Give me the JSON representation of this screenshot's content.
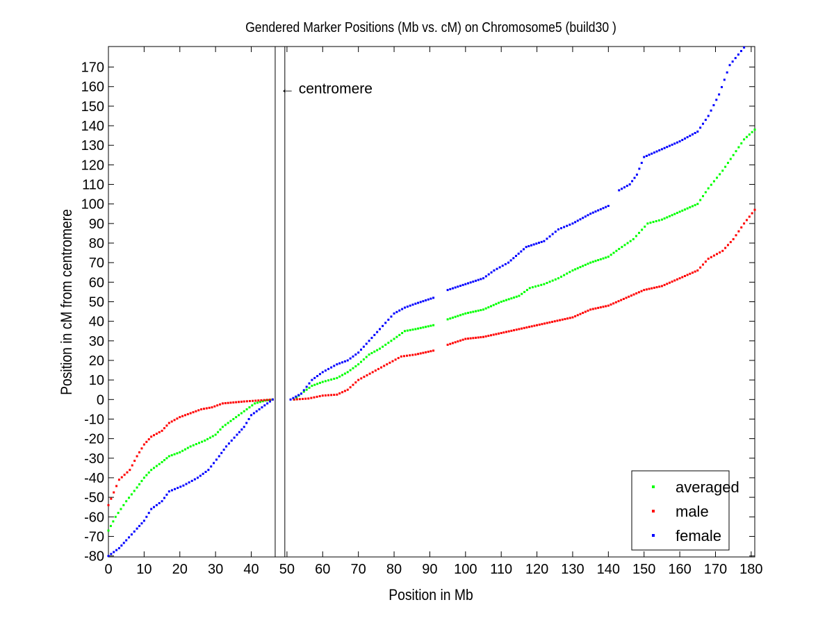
{
  "chart_data": {
    "type": "scatter",
    "title": "Gendered Marker Positions (Mb vs. cM) on Chromosome5 (build30 )",
    "xlabel": "Position in Mb",
    "ylabel": "Position in cM from centromere",
    "xlim": [
      0,
      181
    ],
    "ylim": [
      -80.5,
      180.5
    ],
    "xticks": [
      0,
      10,
      20,
      30,
      40,
      50,
      60,
      70,
      80,
      90,
      100,
      110,
      120,
      130,
      140,
      150,
      160,
      170,
      180
    ],
    "yticks": [
      -80,
      -70,
      -60,
      -50,
      -40,
      -30,
      -20,
      -10,
      0,
      10,
      20,
      30,
      40,
      50,
      60,
      70,
      80,
      90,
      100,
      110,
      120,
      130,
      140,
      150,
      160,
      170
    ],
    "grid": false,
    "legend_position": "bottom-right",
    "centromere": {
      "lines": [
        46.7,
        49.4
      ],
      "label": "← centromere",
      "label_at": [
        50,
        159
      ]
    },
    "series": [
      {
        "name": "averaged",
        "color": "#00ff00",
        "points": [
          [
            0,
            -67
          ],
          [
            2,
            -60
          ],
          [
            5,
            -52
          ],
          [
            8,
            -45
          ],
          [
            10,
            -40
          ],
          [
            12,
            -36
          ],
          [
            15,
            -32
          ],
          [
            17,
            -29
          ],
          [
            20,
            -27
          ],
          [
            23,
            -24
          ],
          [
            27,
            -21
          ],
          [
            30,
            -18
          ],
          [
            32,
            -14
          ],
          [
            35,
            -10
          ],
          [
            38,
            -6
          ],
          [
            41,
            -2
          ],
          [
            44,
            -0.5
          ],
          [
            46,
            0
          ],
          null,
          [
            52,
            0
          ],
          [
            54,
            3
          ],
          [
            57,
            7
          ],
          [
            60,
            9
          ],
          [
            64,
            11
          ],
          [
            67,
            14
          ],
          [
            70,
            18
          ],
          [
            73,
            23
          ],
          [
            76,
            26
          ],
          [
            80,
            31
          ],
          [
            83,
            35
          ],
          [
            86,
            36
          ],
          [
            91,
            38
          ],
          null,
          [
            95,
            41
          ],
          [
            100,
            44
          ],
          [
            105,
            46
          ],
          [
            110,
            50
          ],
          [
            115,
            53
          ],
          [
            118,
            57
          ],
          [
            122,
            59
          ],
          [
            126,
            62
          ],
          [
            130,
            66
          ],
          [
            135,
            70
          ],
          [
            140,
            73
          ],
          [
            143,
            77
          ],
          [
            147,
            82
          ],
          [
            151,
            90
          ],
          [
            155,
            92
          ],
          [
            160,
            96
          ],
          [
            165,
            100
          ],
          [
            168,
            108
          ],
          [
            172,
            117
          ],
          [
            175,
            125
          ],
          [
            178,
            133
          ],
          [
            181,
            138
          ]
        ]
      },
      {
        "name": "male",
        "color": "#ff0000",
        "points": [
          [
            0,
            -54
          ],
          [
            3,
            -41
          ],
          [
            6,
            -36
          ],
          [
            8,
            -29
          ],
          [
            10,
            -23
          ],
          [
            12,
            -19
          ],
          [
            15,
            -16
          ],
          [
            17,
            -12
          ],
          [
            20,
            -9
          ],
          [
            23,
            -7
          ],
          [
            26,
            -5
          ],
          [
            29,
            -4
          ],
          [
            32,
            -2
          ],
          [
            35,
            -1.5
          ],
          [
            38,
            -1
          ],
          [
            42,
            -0.5
          ],
          [
            46,
            0
          ],
          null,
          [
            52,
            0
          ],
          [
            56,
            0.5
          ],
          [
            60,
            2
          ],
          [
            64,
            2.5
          ],
          [
            67,
            5
          ],
          [
            70,
            10
          ],
          [
            74,
            14
          ],
          [
            78,
            18
          ],
          [
            82,
            22
          ],
          [
            86,
            23
          ],
          [
            91,
            25
          ],
          null,
          [
            95,
            28
          ],
          [
            100,
            31
          ],
          [
            105,
            32
          ],
          [
            110,
            34
          ],
          [
            115,
            36
          ],
          [
            120,
            38
          ],
          [
            125,
            40
          ],
          [
            130,
            42
          ],
          [
            135,
            46
          ],
          [
            140,
            48
          ],
          [
            145,
            52
          ],
          [
            150,
            56
          ],
          [
            155,
            58
          ],
          [
            160,
            62
          ],
          [
            165,
            66
          ],
          [
            168,
            72
          ],
          [
            172,
            76
          ],
          [
            175,
            82
          ],
          [
            178,
            90
          ],
          [
            181,
            97
          ]
        ]
      },
      {
        "name": "female",
        "color": "#0000ff",
        "points": [
          [
            0,
            -80
          ],
          [
            3,
            -76
          ],
          [
            5,
            -72
          ],
          [
            8,
            -66
          ],
          [
            10,
            -62
          ],
          [
            12,
            -56
          ],
          [
            15,
            -52
          ],
          [
            17,
            -47
          ],
          [
            21,
            -44
          ],
          [
            25,
            -40
          ],
          [
            28,
            -36
          ],
          [
            31,
            -29
          ],
          [
            33,
            -24
          ],
          [
            36,
            -18
          ],
          [
            38,
            -14
          ],
          [
            40,
            -8
          ],
          [
            43,
            -4
          ],
          [
            46,
            0
          ],
          null,
          [
            51,
            0
          ],
          [
            54,
            3
          ],
          [
            57,
            10
          ],
          [
            60,
            14
          ],
          [
            64,
            18
          ],
          [
            67,
            20
          ],
          [
            70,
            24
          ],
          [
            73,
            30
          ],
          [
            76,
            36
          ],
          [
            80,
            44
          ],
          [
            83,
            47
          ],
          [
            86,
            49
          ],
          [
            91,
            52
          ],
          null,
          [
            95,
            56
          ],
          [
            100,
            59
          ],
          [
            105,
            62
          ],
          [
            108,
            66
          ],
          [
            112,
            70
          ],
          [
            117,
            78
          ],
          [
            122,
            81
          ],
          [
            126,
            87
          ],
          [
            130,
            90
          ],
          [
            135,
            95
          ],
          [
            140,
            99
          ],
          null,
          [
            143,
            107
          ],
          [
            146,
            110
          ],
          [
            148,
            115
          ],
          [
            150,
            124
          ],
          [
            155,
            128
          ],
          [
            160,
            132
          ],
          [
            165,
            137
          ],
          [
            168,
            145
          ],
          [
            171,
            156
          ],
          [
            174,
            171
          ],
          [
            178,
            180
          ]
        ]
      }
    ]
  }
}
